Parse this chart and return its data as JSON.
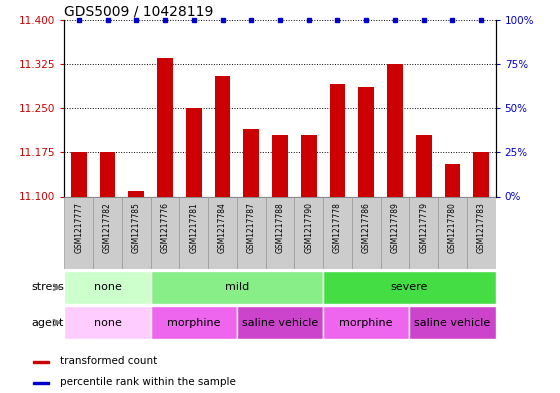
{
  "title": "GDS5009 / 10428119",
  "samples": [
    "GSM1217777",
    "GSM1217782",
    "GSM1217785",
    "GSM1217776",
    "GSM1217781",
    "GSM1217784",
    "GSM1217787",
    "GSM1217788",
    "GSM1217790",
    "GSM1217778",
    "GSM1217786",
    "GSM1217789",
    "GSM1217779",
    "GSM1217780",
    "GSM1217783"
  ],
  "transformed_count": [
    11.175,
    11.175,
    11.11,
    11.335,
    11.25,
    11.305,
    11.215,
    11.205,
    11.205,
    11.29,
    11.285,
    11.325,
    11.205,
    11.155,
    11.175
  ],
  "percentile": [
    100,
    100,
    100,
    100,
    100,
    100,
    100,
    100,
    100,
    100,
    100,
    100,
    100,
    100,
    100
  ],
  "ylim_left": [
    11.1,
    11.4
  ],
  "ylim_right": [
    0,
    100
  ],
  "yticks_left": [
    11.1,
    11.175,
    11.25,
    11.325,
    11.4
  ],
  "yticks_right": [
    0,
    25,
    50,
    75,
    100
  ],
  "bar_color": "#cc0000",
  "dot_color": "#0000cc",
  "stress_groups": [
    {
      "label": "none",
      "start": 0,
      "end": 3,
      "color": "#ccffcc"
    },
    {
      "label": "mild",
      "start": 3,
      "end": 9,
      "color": "#88ee88"
    },
    {
      "label": "severe",
      "start": 9,
      "end": 15,
      "color": "#44dd44"
    }
  ],
  "agent_groups": [
    {
      "label": "none",
      "start": 0,
      "end": 3,
      "color": "#ffccff"
    },
    {
      "label": "morphine",
      "start": 3,
      "end": 6,
      "color": "#ee66ee"
    },
    {
      "label": "saline vehicle",
      "start": 6,
      "end": 9,
      "color": "#cc44cc"
    },
    {
      "label": "morphine",
      "start": 9,
      "end": 12,
      "color": "#ee66ee"
    },
    {
      "label": "saline vehicle",
      "start": 12,
      "end": 15,
      "color": "#cc44cc"
    }
  ],
  "bar_color_red": "#cc0000",
  "dot_color_blue": "#0000cc",
  "ylabel_left_color": "#cc0000",
  "ylabel_right_color": "#0000cc",
  "xtick_bg_color": "#cccccc",
  "xtick_bg_edge": "#999999",
  "base_value": 11.1,
  "bar_width": 0.55
}
